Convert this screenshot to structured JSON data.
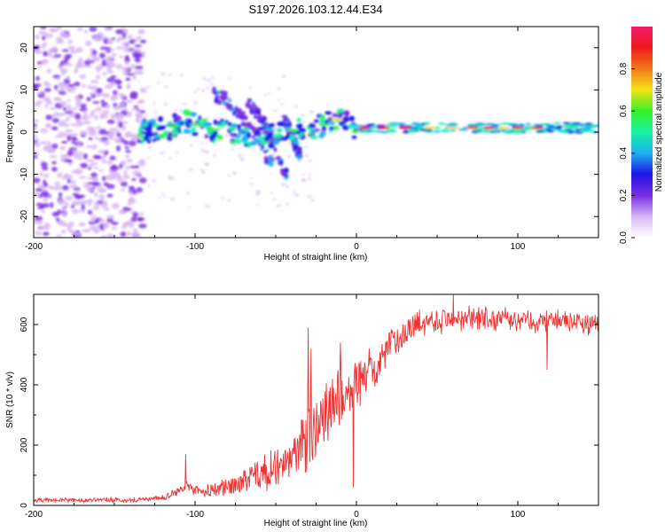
{
  "title": "S197.2026.103.12.44.E34",
  "chart_data": [
    {
      "type": "heatmap",
      "id": "spectrogram",
      "xlabel": "Height of straight line (km)",
      "ylabel": "Frequency (Hz)",
      "xlim": [
        -200,
        150
      ],
      "ylim": [
        -25,
        25
      ],
      "xticks": [
        -200,
        -100,
        0,
        100
      ],
      "yticks": [
        -20,
        -10,
        0,
        10,
        20
      ],
      "colorbar": {
        "label": "Normalized spectral amplitude",
        "ticks": [
          "0.0",
          "0.2",
          "0.4",
          "0.6",
          "0.8"
        ],
        "range": [
          0,
          1
        ],
        "colors": [
          "#ffffff",
          "#d7b6f4",
          "#7a2ee3",
          "#1f12e6",
          "#1fb0f0",
          "#17f2a2",
          "#39f02a",
          "#f2e214",
          "#f27a1a",
          "#ee1a1a",
          "#f01a6e"
        ]
      },
      "ridge": [
        {
          "x": -135,
          "y": 0.0
        },
        {
          "x": -115,
          "y": 1.0
        },
        {
          "x": -105,
          "y": 2.5
        },
        {
          "x": -95,
          "y": 1.0
        },
        {
          "x": -80,
          "y": 0.0
        },
        {
          "x": -70,
          "y": -1.0
        },
        {
          "x": -55,
          "y": -1.0
        },
        {
          "x": -40,
          "y": 0.5
        },
        {
          "x": -25,
          "y": 1.0
        },
        {
          "x": -12,
          "y": 3.0
        },
        {
          "x": 0,
          "y": 1.0
        },
        {
          "x": 150,
          "y": 1.0
        }
      ],
      "branches": [
        [
          {
            "x": -90,
            "y": 9.5
          },
          {
            "x": -80,
            "y": 7.5
          },
          {
            "x": -72,
            "y": 4.0
          },
          {
            "x": -60,
            "y": -2.0
          },
          {
            "x": -52,
            "y": -8.0
          }
        ],
        [
          {
            "x": -68,
            "y": 7.0
          },
          {
            "x": -58,
            "y": 3.0
          },
          {
            "x": -50,
            "y": -3.0
          },
          {
            "x": -43,
            "y": -11.0
          }
        ],
        [
          {
            "x": -45,
            "y": 4.0
          },
          {
            "x": -40,
            "y": -1.0
          },
          {
            "x": -35,
            "y": -5.0
          }
        ]
      ]
    },
    {
      "type": "line",
      "id": "snr",
      "xlabel": "Height of straight line (km)",
      "ylabel": "SNR (10 * v/v)",
      "xlim": [
        -200,
        150
      ],
      "ylim": [
        0,
        700
      ],
      "xticks": [
        -200,
        -100,
        0,
        100
      ],
      "yticks": [
        0,
        200,
        400,
        600
      ],
      "color": "#ee3333",
      "trend": [
        {
          "x": -200,
          "y": 18
        },
        {
          "x": -140,
          "y": 18
        },
        {
          "x": -120,
          "y": 25
        },
        {
          "x": -105,
          "y": 60
        },
        {
          "x": -95,
          "y": 45
        },
        {
          "x": -80,
          "y": 60
        },
        {
          "x": -60,
          "y": 100
        },
        {
          "x": -40,
          "y": 150
        },
        {
          "x": -30,
          "y": 230
        },
        {
          "x": -20,
          "y": 300
        },
        {
          "x": -10,
          "y": 360
        },
        {
          "x": 0,
          "y": 400
        },
        {
          "x": 10,
          "y": 440
        },
        {
          "x": 20,
          "y": 520
        },
        {
          "x": 30,
          "y": 580
        },
        {
          "x": 40,
          "y": 610
        },
        {
          "x": 60,
          "y": 620
        },
        {
          "x": 100,
          "y": 615
        },
        {
          "x": 150,
          "y": 605
        }
      ],
      "noise": [
        {
          "x": -200,
          "a": 12
        },
        {
          "x": -120,
          "a": 15
        },
        {
          "x": -80,
          "a": 50
        },
        {
          "x": -40,
          "a": 140
        },
        {
          "x": -25,
          "a": 230
        },
        {
          "x": -10,
          "a": 180
        },
        {
          "x": 0,
          "a": 140
        },
        {
          "x": 20,
          "a": 90
        },
        {
          "x": 40,
          "a": 75
        },
        {
          "x": 150,
          "a": 60
        }
      ],
      "spikes": [
        {
          "x": -106,
          "y": 170
        },
        {
          "x": -30,
          "y": 590
        },
        {
          "x": -28,
          "y": 520
        },
        {
          "x": -10,
          "y": 540
        },
        {
          "x": -2,
          "y": 60
        },
        {
          "x": 8,
          "y": 520
        },
        {
          "x": 60,
          "y": 700
        },
        {
          "x": 118,
          "y": 450
        }
      ]
    }
  ]
}
